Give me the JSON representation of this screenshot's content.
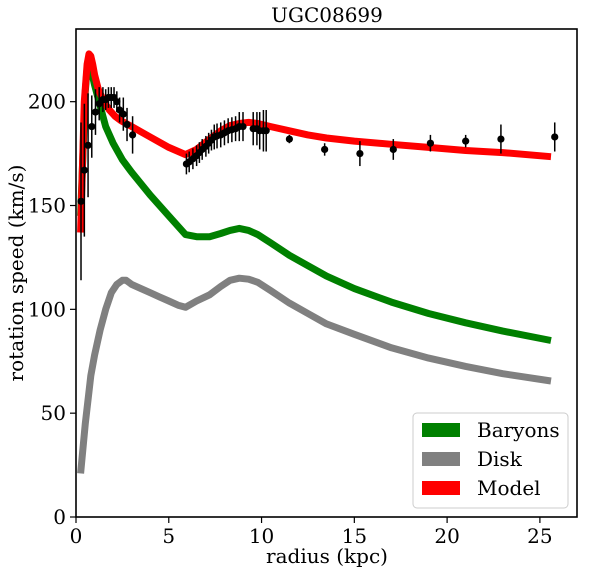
{
  "chart_data": {
    "type": "line",
    "title": "UGC08699",
    "xlabel": "radius (kpc)",
    "ylabel": "rotation speed (km/s)",
    "xlim": [
      0,
      27
    ],
    "ylim": [
      0,
      235
    ],
    "xticks": [
      0,
      5,
      10,
      15,
      20,
      25
    ],
    "yticks": [
      0,
      50,
      100,
      150,
      200
    ],
    "xtick_labels": [
      "0",
      "5",
      "10",
      "15",
      "20",
      "25"
    ],
    "ytick_labels": [
      "0",
      "50",
      "100",
      "150",
      "200"
    ],
    "grid": false,
    "legend_position": "lower-right",
    "series": [
      {
        "name": "Baryons",
        "kind": "band",
        "color": "#008000",
        "x": [
          0.25,
          0.5,
          0.6,
          0.7,
          0.8,
          1.0,
          1.3,
          1.6,
          2.0,
          2.5,
          3.0,
          4.0,
          5.0,
          5.9,
          6.5,
          7.2,
          7.8,
          8.3,
          8.8,
          9.3,
          9.8,
          10.5,
          11.5,
          12.5,
          13.5,
          15.0,
          17.0,
          19.0,
          21.0,
          23.0,
          25.6
        ],
        "y": [
          145,
          205,
          216,
          220,
          216,
          208,
          198,
          188,
          180,
          172,
          166,
          155,
          145,
          136,
          135,
          135,
          136.5,
          138,
          139,
          138,
          136,
          132,
          126,
          121,
          116,
          110,
          103.5,
          98,
          93.5,
          89.5,
          85
        ]
      },
      {
        "name": "Disk",
        "kind": "band",
        "color": "#808080",
        "x": [
          0.25,
          0.5,
          0.8,
          1.0,
          1.3,
          1.6,
          1.9,
          2.2,
          2.5,
          2.7,
          3.0,
          3.5,
          4.0,
          4.5,
          5.0,
          5.5,
          5.9,
          6.5,
          7.2,
          7.8,
          8.3,
          8.8,
          9.3,
          9.8,
          10.5,
          11.5,
          12.5,
          13.5,
          15.0,
          17.0,
          19.0,
          21.0,
          23.0,
          25.6
        ],
        "y": [
          21,
          45,
          68,
          78,
          90,
          100,
          108,
          112,
          114,
          114,
          112,
          110,
          108,
          106,
          104,
          102,
          101,
          104,
          107,
          111,
          114,
          115,
          114.5,
          113,
          109,
          103,
          98,
          93,
          88,
          81.5,
          76.5,
          72.5,
          69,
          65.5
        ]
      },
      {
        "name": "Model",
        "kind": "band",
        "color": "#ff0000",
        "x": [
          0.25,
          0.45,
          0.6,
          0.7,
          0.8,
          0.9,
          1.0,
          1.2,
          1.5,
          1.8,
          2.1,
          2.4,
          3.0,
          4.0,
          5.0,
          5.9,
          6.5,
          7.2,
          7.8,
          8.3,
          8.8,
          9.3,
          9.8,
          10.5,
          11.5,
          12.5,
          13.5,
          15.0,
          17.0,
          19.0,
          21.0,
          23.0,
          25.6
        ],
        "y": [
          137,
          200,
          218,
          223,
          222,
          218,
          213,
          206,
          200,
          196,
          193,
          191,
          188,
          183,
          178,
          174.5,
          177,
          182,
          186,
          188.5,
          189.5,
          190,
          189.5,
          188,
          186,
          184,
          182.5,
          181,
          179.5,
          178,
          176.5,
          175.5,
          173.5
        ]
      },
      {
        "name": "",
        "kind": "errorbar",
        "color": "#000000",
        "x": [
          0.27,
          0.45,
          0.65,
          0.85,
          1.05,
          1.25,
          1.45,
          1.6,
          1.75,
          1.9,
          2.05,
          2.2,
          2.35,
          2.55,
          2.75,
          3.05,
          5.95,
          6.1,
          6.3,
          6.5,
          6.65,
          6.8,
          7.0,
          7.15,
          7.3,
          7.45,
          7.6,
          7.8,
          8.0,
          8.2,
          8.4,
          8.6,
          8.8,
          9.0,
          9.55,
          9.75,
          9.9,
          10.1,
          10.25,
          11.5,
          13.4,
          15.3,
          17.1,
          19.1,
          21.0,
          22.9,
          25.8
        ],
        "y": [
          152,
          167,
          179,
          188,
          195,
          199,
          201,
          201,
          202,
          202,
          202,
          200,
          196,
          194,
          189,
          184,
          170,
          171,
          172.5,
          174,
          175.5,
          177,
          178.5,
          180,
          181.5,
          183,
          183.5,
          184,
          185,
          186,
          186.5,
          187,
          188,
          188,
          187,
          187,
          186,
          186,
          186,
          182,
          177,
          175,
          177,
          180,
          181,
          182,
          183
        ],
        "err": [
          38,
          32,
          25,
          15,
          11,
          8,
          6,
          5,
          5,
          5,
          5,
          5,
          6,
          8,
          8,
          9,
          5,
          5,
          5,
          5,
          5,
          5,
          5,
          5,
          5,
          6,
          6,
          6,
          6,
          6,
          6,
          6,
          7,
          7,
          8,
          8,
          9,
          10,
          10,
          2,
          3,
          6,
          5,
          4,
          3,
          7,
          7
        ]
      }
    ]
  }
}
